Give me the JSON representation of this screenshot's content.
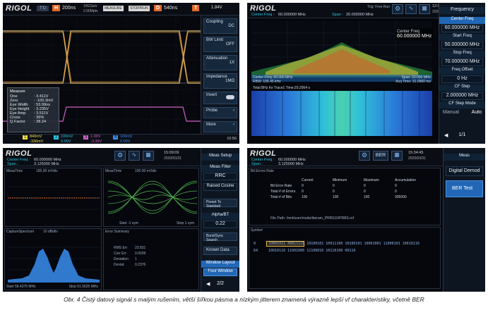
{
  "p1": {
    "brand": "RIGOL",
    "mode": "T'D",
    "h_label": "H",
    "h_value": "200ns",
    "rate": "10GSa/s",
    "pts": "2.00Mpts",
    "measure": "MEASURE",
    "stoprun": "STOP/RUN",
    "d_label": "D",
    "d_value": "540ns",
    "t_label": "T",
    "t_value": "1.84V",
    "menu": {
      "coupling": "Coupling",
      "coupling_val": "DC",
      "bw": "BW Limit",
      "bw_val": "OFF",
      "atten": "Attenuation",
      "atten_val": "1X",
      "imped": "Impedance",
      "imped_val": "1MΩ",
      "invert": "Invert",
      "probe": "Probe",
      "more": "More"
    },
    "measure_box": {
      "title": "Measure",
      "rows": [
        {
          "k": "One",
          "v": "3.411V"
        },
        {
          "k": "Zero",
          "v": "-100.3mV"
        },
        {
          "k": "Eye Width",
          "v": "53.99ns"
        },
        {
          "k": "Eye Height",
          "v": "3.235V"
        },
        {
          "k": "Eye Amp",
          "v": "3.511V"
        },
        {
          "k": "Cross",
          "v": "36%"
        },
        {
          "k": "Q Factor",
          "v": "38.24"
        }
      ]
    },
    "ch1": "840mV",
    "ch1b": "-336mV",
    "ch2": "100mV",
    "ch2b": "0.00V",
    "ch3": "1.00V",
    "ch3b": "-3.36V",
    "ch4": "100mV",
    "ch4b": "0.00V",
    "time": "10:56"
  },
  "p2": {
    "brand": "RIGOL",
    "center_label": "Center Freq :",
    "center_val": "60.000000 MHz",
    "span_label": "Span :",
    "span_val": "20.000000 MHz",
    "rbw": "RBW: 10 kHz",
    "trig": "Trig: Free Run",
    "clock": "12:07:47",
    "date": "2020/03/31",
    "menu": {
      "title": "Frequency",
      "items": [
        {
          "label": "Center Freq",
          "value": "60.000000 MHz"
        },
        {
          "label": "Start Freq",
          "value": "50.000000 MHz"
        },
        {
          "label": "Stop Freq",
          "value": "70.000000 MHz"
        },
        {
          "label": "Freq Offset",
          "value": "0 Hz"
        },
        {
          "label": "CF Step",
          "value": "2.000000 MHz"
        },
        {
          "label": "CF Step Mode",
          "value": "Auto"
        }
      ],
      "manual": "Manual",
      "auto": "Auto",
      "page": "1/1"
    },
    "center_box_label": "Center Freq",
    "center_box_val": "60.000000 MHz",
    "footer_l": "Center Freq: 60.000 MHz",
    "footer_l2": "RBW: 105.45 kHz",
    "footer_r": "Span: 20.000 MHz",
    "footer_r2": "Acq Time: 31.0960 ms",
    "spec_title": "Total BHz for Trace1 Time:29.2064 s"
  },
  "p3": {
    "brand": "RIGOL",
    "center_label": "Center Freq :",
    "center_val": "60.000000 MHz",
    "span_label": "Span :",
    "span_val": "3.125000 MHz",
    "clock": "15:09:09",
    "date": "2020/03/31",
    "menu": {
      "title": "Meas Setup",
      "items": [
        "Meas Filter",
        "RRC",
        "Raised Cosine",
        "Preset To Standard",
        "Alpha/BT",
        "0.22",
        "Burst/Sync Search",
        "Known Data",
        "Window Layout",
        "Four Window"
      ],
      "page": "2/2"
    },
    "win1": "MeasTime",
    "win1b": "185.00 mVdiv",
    "win2": "MeasTime",
    "win2b": "100.00 mVdiv",
    "win3": "CaptureSpectrum",
    "win3b": "10 dB/div",
    "win4": "Error Summary",
    "startl": "Start -1 sym",
    "stopl": "Stop 1 sym",
    "fstart": "Start 58.4375 MHz",
    "fstop": "Stop 61.5625 MHz",
    "err": [
      {
        "k": "RMS Err",
        "v": "23.831"
      },
      {
        "k": "Corr Err",
        "v": "0.0039"
      },
      {
        "k": "Deviation",
        "v": "1"
      },
      {
        "k": "Deviat.",
        "v": "0.2376"
      }
    ]
  },
  "p4": {
    "brand": "RIGOL",
    "ber": "BER",
    "center_label": "Center Freq :",
    "center_val": "60.000000 MHz",
    "span_label": "Span :",
    "span_val": "3.125000 MHz",
    "clock": "15:34:45",
    "date": "2020/03/31",
    "menu": {
      "title": "Meas",
      "digital": "Digital Demod",
      "bertest": "BER Test"
    },
    "ber_title": "Bit Errors Rate",
    "cols": [
      "Current",
      "Minimum",
      "Maximum",
      "Accumulation"
    ],
    "rows": [
      {
        "k": "Bit Error Rate",
        "v": [
          "0",
          "0",
          "0",
          "0"
        ]
      },
      {
        "k": "Total # of Errors",
        "v": [
          "0",
          "0",
          "0",
          "0"
        ]
      },
      {
        "k": "Total # of Bits",
        "v": [
          "100",
          "100",
          "100",
          "305000"
        ]
      }
    ],
    "file": "File Path: /mnt/user/mode/iberam_PRBS10/PRBS.ref",
    "symbol": "Symbol",
    "sym_rows": [
      {
        "n": "0",
        "bits": "10001011 00011110 10100101 10011100 10100101 10001001 11000101 10010110"
      },
      {
        "n": "64",
        "bits": "10010110 11001000 11100010 10110100 00110"
      }
    ]
  },
  "caption": "Obr. 4  Čistý datový signál s malým rušením, větší šířkou pásma a nízkým jitterem znamená výrazně lepší vf charakteristiky, včetně BER"
}
